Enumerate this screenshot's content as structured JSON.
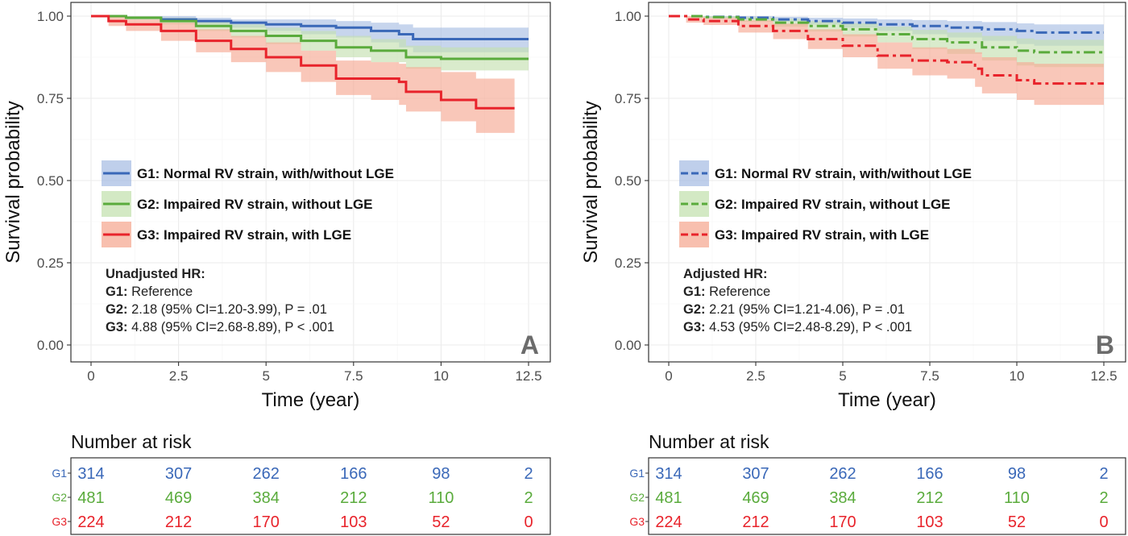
{
  "colors": {
    "G1": "#3a68b8",
    "G2": "#5aab3c",
    "G3": "#e8232b",
    "G1_band": "#a9bfe4",
    "G2_band": "#c4e1b0",
    "G3_band": "#f6a993"
  },
  "chart_data": [
    {
      "type": "line",
      "panel_letter": "A",
      "xlabel": "Time (year)",
      "ylabel": "Survival probability",
      "xlim": [
        0,
        12.5
      ],
      "ylim": [
        0,
        1
      ],
      "x_ticks": [
        "0",
        "2.5",
        "5",
        "7.5",
        "10",
        "12.5"
      ],
      "y_ticks": [
        "0.00",
        "0.25",
        "0.50",
        "0.75",
        "1.00"
      ],
      "line_style": "solid",
      "grid": true,
      "legend_position": "middle-left",
      "legend": [
        {
          "label": "G1: Normal RV strain, with/without LGE",
          "group": "G1"
        },
        {
          "label": "G2: Impaired RV strain, without LGE",
          "group": "G2"
        },
        {
          "label": "G3: Impaired RV strain, with LGE",
          "group": "G3"
        }
      ],
      "hr_title": "Unadjusted HR:",
      "hr_lines": [
        {
          "g": "G1:",
          "text": " Reference",
          "p": ""
        },
        {
          "g": "G2:",
          "text": " 2.18 (95% CI=1.20-3.99), ",
          "p": "P = .01"
        },
        {
          "g": "G3:",
          "text": " 4.88 (95% CI=2.68-8.89), ",
          "p": "P < .001"
        }
      ],
      "series": [
        {
          "name": "G1",
          "x": [
            0,
            1,
            2,
            3,
            4,
            5,
            6,
            7,
            8,
            8.8,
            9.2,
            12.5
          ],
          "y": [
            1.0,
            0.995,
            0.99,
            0.985,
            0.98,
            0.975,
            0.97,
            0.965,
            0.955,
            0.945,
            0.93,
            0.93
          ],
          "lower": [
            1.0,
            0.99,
            0.985,
            0.975,
            0.965,
            0.955,
            0.945,
            0.935,
            0.92,
            0.905,
            0.89,
            0.89
          ],
          "upper": [
            1.0,
            1.0,
            1.0,
            0.995,
            0.99,
            0.99,
            0.99,
            0.985,
            0.98,
            0.975,
            0.965,
            0.965
          ]
        },
        {
          "name": "G2",
          "x": [
            0,
            1,
            2,
            3,
            4,
            5,
            6,
            7,
            8,
            9,
            10,
            12.5
          ],
          "y": [
            1.0,
            0.995,
            0.985,
            0.97,
            0.955,
            0.94,
            0.925,
            0.905,
            0.895,
            0.875,
            0.87,
            0.87
          ],
          "lower": [
            1.0,
            0.99,
            0.975,
            0.955,
            0.935,
            0.915,
            0.895,
            0.875,
            0.86,
            0.84,
            0.835,
            0.835
          ],
          "upper": [
            1.0,
            1.0,
            0.995,
            0.985,
            0.975,
            0.965,
            0.955,
            0.94,
            0.93,
            0.91,
            0.905,
            0.905
          ]
        },
        {
          "name": "G3",
          "x": [
            0,
            0.5,
            1,
            2,
            3,
            4,
            5,
            6,
            7,
            8,
            8.8,
            9,
            10,
            11,
            12.1
          ],
          "y": [
            1.0,
            0.985,
            0.975,
            0.955,
            0.925,
            0.9,
            0.875,
            0.85,
            0.81,
            0.81,
            0.8,
            0.77,
            0.745,
            0.72,
            0.72
          ],
          "lower": [
            1.0,
            0.97,
            0.955,
            0.925,
            0.89,
            0.86,
            0.83,
            0.8,
            0.76,
            0.745,
            0.73,
            0.71,
            0.68,
            0.645,
            0.645
          ],
          "upper": [
            1.0,
            1.0,
            0.99,
            0.98,
            0.96,
            0.94,
            0.92,
            0.895,
            0.865,
            0.86,
            0.855,
            0.845,
            0.83,
            0.81,
            0.81
          ]
        }
      ],
      "risk_table": {
        "title": "Number at risk",
        "rows": [
          {
            "group": "G1",
            "values": [
              "314",
              "307",
              "262",
              "166",
              "98",
              "2"
            ]
          },
          {
            "group": "G2",
            "values": [
              "481",
              "469",
              "384",
              "212",
              "110",
              "2"
            ]
          },
          {
            "group": "G3",
            "values": [
              "224",
              "212",
              "170",
              "103",
              "52",
              "0"
            ]
          }
        ]
      }
    },
    {
      "type": "line",
      "panel_letter": "B",
      "xlabel": "Time (year)",
      "ylabel": "Survival probability",
      "xlim": [
        0,
        12.5
      ],
      "ylim": [
        0,
        1
      ],
      "x_ticks": [
        "0",
        "2.5",
        "5",
        "7.5",
        "10",
        "12.5"
      ],
      "y_ticks": [
        "0.00",
        "0.25",
        "0.50",
        "0.75",
        "1.00"
      ],
      "line_style": "dashed",
      "grid": true,
      "legend_position": "middle-left",
      "legend": [
        {
          "label": "G1: Normal RV strain, with/without LGE",
          "group": "G1"
        },
        {
          "label": "G2: Impaired RV strain, without LGE",
          "group": "G2"
        },
        {
          "label": "G3: Impaired RV strain, with LGE",
          "group": "G3"
        }
      ],
      "hr_title": "Adjusted HR:",
      "hr_lines": [
        {
          "g": "G1:",
          "text": " Reference",
          "p": ""
        },
        {
          "g": "G2:",
          "text": " 2.21 (95% CI=1.21-4.06), ",
          "p": "P = .01"
        },
        {
          "g": "G3:",
          "text": " 4.53 (95% CI=2.48-8.29), ",
          "p": "P < .001"
        }
      ],
      "series": [
        {
          "name": "G1",
          "x": [
            0,
            1,
            2,
            3,
            4,
            5,
            6,
            7,
            8,
            9,
            10,
            10.5,
            12.5
          ],
          "y": [
            1.0,
            0.998,
            0.995,
            0.99,
            0.985,
            0.98,
            0.975,
            0.97,
            0.965,
            0.96,
            0.955,
            0.95,
            0.95
          ],
          "lower": [
            1.0,
            0.995,
            0.99,
            0.983,
            0.975,
            0.965,
            0.955,
            0.945,
            0.935,
            0.925,
            0.915,
            0.91,
            0.91
          ],
          "upper": [
            1.0,
            1.0,
            1.0,
            0.998,
            0.995,
            0.993,
            0.99,
            0.988,
            0.985,
            0.982,
            0.978,
            0.975,
            0.975
          ]
        },
        {
          "name": "G2",
          "x": [
            0,
            1,
            2,
            3,
            4,
            5,
            6,
            7,
            8,
            9,
            10,
            10.5,
            12.5
          ],
          "y": [
            1.0,
            0.997,
            0.99,
            0.98,
            0.97,
            0.96,
            0.945,
            0.93,
            0.92,
            0.905,
            0.895,
            0.89,
            0.89
          ],
          "lower": [
            1.0,
            0.993,
            0.983,
            0.968,
            0.953,
            0.938,
            0.92,
            0.9,
            0.885,
            0.865,
            0.85,
            0.845,
            0.845
          ],
          "upper": [
            1.0,
            1.0,
            0.997,
            0.992,
            0.985,
            0.978,
            0.968,
            0.958,
            0.95,
            0.94,
            0.932,
            0.928,
            0.928
          ]
        },
        {
          "name": "G3",
          "x": [
            0,
            0.5,
            1,
            2,
            3,
            4,
            5,
            6,
            7,
            8,
            8.8,
            9,
            10,
            10.5,
            12.5
          ],
          "y": [
            1.0,
            0.99,
            0.985,
            0.97,
            0.955,
            0.93,
            0.91,
            0.88,
            0.865,
            0.86,
            0.84,
            0.82,
            0.805,
            0.795,
            0.795
          ],
          "lower": [
            1.0,
            0.98,
            0.973,
            0.95,
            0.93,
            0.9,
            0.875,
            0.84,
            0.82,
            0.81,
            0.785,
            0.765,
            0.745,
            0.73,
            0.73
          ],
          "upper": [
            1.0,
            1.0,
            0.995,
            0.987,
            0.977,
            0.96,
            0.945,
            0.92,
            0.905,
            0.9,
            0.89,
            0.875,
            0.86,
            0.855,
            0.855
          ]
        }
      ],
      "risk_table": {
        "title": "Number at risk",
        "rows": [
          {
            "group": "G1",
            "values": [
              "314",
              "307",
              "262",
              "166",
              "98",
              "2"
            ]
          },
          {
            "group": "G2",
            "values": [
              "481",
              "469",
              "384",
              "212",
              "110",
              "2"
            ]
          },
          {
            "group": "G3",
            "values": [
              "224",
              "212",
              "170",
              "103",
              "52",
              "0"
            ]
          }
        ]
      }
    }
  ]
}
